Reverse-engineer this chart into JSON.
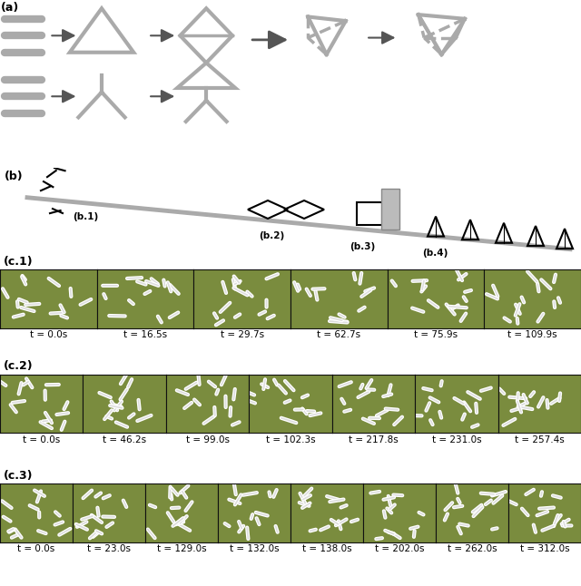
{
  "panel_a_label": "(a)",
  "panel_b_label": "(b)",
  "panel_b_sublabels": [
    "(b.1)",
    "(b.2)",
    "(b.3)",
    "(b.4)"
  ],
  "panel_c1_label": "(c.1)",
  "panel_c2_label": "(c.2)",
  "panel_c3_label": "(c.3)",
  "c1_times": [
    "t = 0.0s",
    "t = 16.5s",
    "t = 29.7s",
    "t = 62.7s",
    "t = 75.9s",
    "t = 109.9s"
  ],
  "c2_times": [
    "t = 0.0s",
    "t = 46.2s",
    "t = 99.0s",
    "t = 102.3s",
    "t = 217.8s",
    "t = 231.0s",
    "t = 257.4s"
  ],
  "c3_times": [
    "t = 0.0s",
    "t = 23.0s",
    "t = 129.0s",
    "t = 132.0s",
    "t = 138.0s",
    "t = 202.0s",
    "t = 262.0s",
    "t = 312.0s"
  ],
  "bg_color": "#ffffff",
  "photo_bg": "#7a8c3e",
  "rod_color": "#aaaaaa",
  "arrow_color": "#555555",
  "black": "#000000",
  "label_fontsize": 9,
  "time_fontsize": 7.5,
  "fig_width": 6.4,
  "fig_height": 6.46
}
